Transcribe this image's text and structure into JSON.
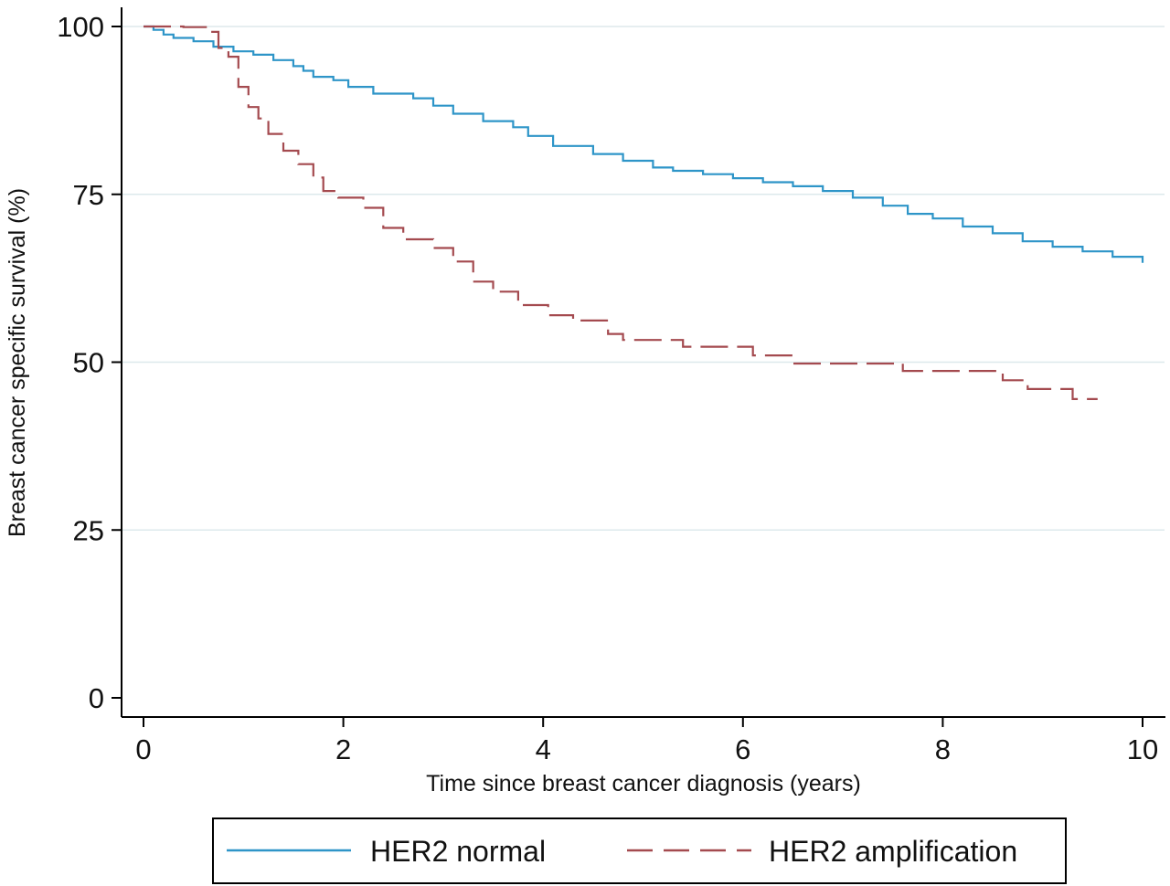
{
  "chart_data": {
    "type": "line",
    "step": true,
    "xlabel": "Time since breast cancer diagnosis (years)",
    "ylabel": "Breast cancer specific survival (%)",
    "xlim": [
      0,
      10
    ],
    "ylim": [
      0,
      100
    ],
    "x_ticks": [
      0,
      2,
      4,
      6,
      8,
      10
    ],
    "y_ticks": [
      0,
      25,
      50,
      75,
      100
    ],
    "grid": "horizontal",
    "legend_position": "bottom",
    "series": [
      {
        "name": "HER2 normal",
        "color": "#2e95c8",
        "dash": "solid",
        "points": [
          [
            0,
            100
          ],
          [
            0.1,
            99.5
          ],
          [
            0.2,
            98.8
          ],
          [
            0.3,
            98.3
          ],
          [
            0.5,
            97.8
          ],
          [
            0.7,
            97.0
          ],
          [
            0.9,
            96.3
          ],
          [
            1.1,
            95.8
          ],
          [
            1.3,
            95.0
          ],
          [
            1.5,
            94.1
          ],
          [
            1.6,
            93.4
          ],
          [
            1.7,
            92.5
          ],
          [
            1.9,
            92.0
          ],
          [
            2.05,
            91.0
          ],
          [
            2.3,
            90.0
          ],
          [
            2.7,
            89.3
          ],
          [
            2.9,
            88.2
          ],
          [
            3.1,
            87.0
          ],
          [
            3.4,
            85.9
          ],
          [
            3.7,
            85.0
          ],
          [
            3.85,
            83.7
          ],
          [
            4.1,
            82.2
          ],
          [
            4.5,
            81.0
          ],
          [
            4.8,
            80.0
          ],
          [
            5.1,
            79.0
          ],
          [
            5.3,
            78.5
          ],
          [
            5.6,
            78.0
          ],
          [
            5.9,
            77.4
          ],
          [
            6.2,
            76.8
          ],
          [
            6.5,
            76.2
          ],
          [
            6.8,
            75.5
          ],
          [
            7.1,
            74.5
          ],
          [
            7.4,
            73.3
          ],
          [
            7.65,
            72.1
          ],
          [
            7.9,
            71.4
          ],
          [
            8.2,
            70.2
          ],
          [
            8.5,
            69.2
          ],
          [
            8.8,
            68.0
          ],
          [
            9.1,
            67.2
          ],
          [
            9.4,
            66.5
          ],
          [
            9.7,
            65.7
          ],
          [
            10.0,
            64.8
          ]
        ]
      },
      {
        "name": "HER2 amplification",
        "color": "#a44a4f",
        "dash": "long-dash",
        "points": [
          [
            0,
            100
          ],
          [
            0.4,
            99.9
          ],
          [
            0.65,
            99.2
          ],
          [
            0.75,
            96.8
          ],
          [
            0.85,
            95.5
          ],
          [
            0.95,
            91.0
          ],
          [
            1.05,
            88.0
          ],
          [
            1.15,
            86.3
          ],
          [
            1.25,
            84.0
          ],
          [
            1.4,
            81.5
          ],
          [
            1.55,
            79.5
          ],
          [
            1.7,
            77.5
          ],
          [
            1.8,
            75.5
          ],
          [
            1.95,
            74.5
          ],
          [
            2.2,
            73.0
          ],
          [
            2.4,
            70.0
          ],
          [
            2.6,
            68.3
          ],
          [
            2.9,
            67.0
          ],
          [
            3.1,
            65.0
          ],
          [
            3.3,
            62.0
          ],
          [
            3.5,
            60.5
          ],
          [
            3.75,
            58.5
          ],
          [
            4.05,
            57.0
          ],
          [
            4.3,
            56.2
          ],
          [
            4.65,
            54.2
          ],
          [
            4.8,
            53.3
          ],
          [
            5.4,
            52.3
          ],
          [
            6.1,
            51.0
          ],
          [
            6.5,
            49.8
          ],
          [
            7.6,
            48.7
          ],
          [
            8.6,
            47.3
          ],
          [
            8.85,
            46.0
          ],
          [
            9.3,
            44.5
          ],
          [
            9.55,
            44.5
          ]
        ]
      }
    ]
  },
  "legend": {
    "items": [
      {
        "label": "HER2 normal"
      },
      {
        "label": "HER2 amplification"
      }
    ]
  }
}
